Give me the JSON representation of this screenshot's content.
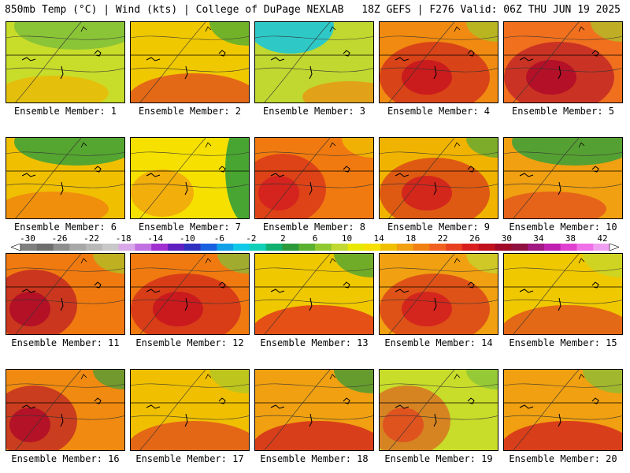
{
  "header": {
    "left_title": "850mb Temp (°C) | Wind (kts) | College of DuPage NEXLAB",
    "right_title": "18Z GEFS | F276 Valid: 06Z THU JUN 19 2025"
  },
  "members": [
    {
      "label": "Ensemble Member: 1",
      "base": "#c8dc2a",
      "hot": "#f0b400",
      "cold": "#7fc03a",
      "pattern": "cool-north"
    },
    {
      "label": "Ensemble Member: 2",
      "base": "#f0c800",
      "hot": "#e04a1e",
      "cold": "#3aa83a",
      "pattern": "warm-south"
    },
    {
      "label": "Ensemble Member: 3",
      "base": "#c0d830",
      "hot": "#f08c10",
      "cold": "#1ec8d8",
      "pattern": "cold-northwest"
    },
    {
      "label": "Ensemble Member: 4",
      "base": "#f08a10",
      "hot": "#c8141e",
      "cold": "#a0c828",
      "pattern": "hot-center"
    },
    {
      "label": "Ensemble Member: 5",
      "base": "#f0701e",
      "hot": "#b00a28",
      "cold": "#a8c828",
      "pattern": "hot-center"
    },
    {
      "label": "Ensemble Member: 6",
      "base": "#f0c000",
      "hot": "#f07a10",
      "cold": "#3aa03a",
      "pattern": "cool-north"
    },
    {
      "label": "Ensemble Member: 7",
      "base": "#f5e000",
      "hot": "#f08c10",
      "cold": "#2a9a3a",
      "pattern": "cool-east"
    },
    {
      "label": "Ensemble Member: 8",
      "base": "#f07a10",
      "hot": "#d21e1e",
      "cold": "#f0c800",
      "pattern": "hot-west"
    },
    {
      "label": "Ensemble Member: 9",
      "base": "#f0b400",
      "hot": "#d21e1e",
      "cold": "#4aa83a",
      "pattern": "hot-center"
    },
    {
      "label": "Ensemble Member: 10",
      "base": "#f0a010",
      "hot": "#e04a1e",
      "cold": "#3aa03a",
      "pattern": "cool-north"
    },
    {
      "label": "Ensemble Member: 11",
      "base": "#f07a10",
      "hot": "#b00a28",
      "cold": "#a8c828",
      "pattern": "hot-west"
    },
    {
      "label": "Ensemble Member: 12",
      "base": "#f07a10",
      "hot": "#c8141e",
      "cold": "#7fc03a",
      "pattern": "hot-center"
    },
    {
      "label": "Ensemble Member: 13",
      "base": "#f0c800",
      "hot": "#e0281e",
      "cold": "#3aa03a",
      "pattern": "warm-south"
    },
    {
      "label": "Ensemble Member: 14",
      "base": "#f0a010",
      "hot": "#d21e1e",
      "cold": "#c0d830",
      "pattern": "hot-center"
    },
    {
      "label": "Ensemble Member: 15",
      "base": "#f0c800",
      "hot": "#e04a1e",
      "cold": "#c0d830",
      "pattern": "warm-south"
    },
    {
      "label": "Ensemble Member: 16",
      "base": "#f08a10",
      "hot": "#b00a28",
      "cold": "#3aa03a",
      "pattern": "hot-west"
    },
    {
      "label": "Ensemble Member: 17",
      "base": "#f0c000",
      "hot": "#e04a1e",
      "cold": "#a8c828",
      "pattern": "warm-south"
    },
    {
      "label": "Ensemble Member: 18",
      "base": "#f0a010",
      "hot": "#d21e1e",
      "cold": "#2a9a3a",
      "pattern": "warm-south"
    },
    {
      "label": "Ensemble Member: 19",
      "base": "#c8dc2a",
      "hot": "#e04a1e",
      "cold": "#7fc03a",
      "pattern": "hot-west"
    },
    {
      "label": "Ensemble Member: 20",
      "base": "#f0a010",
      "hot": "#d21e1e",
      "cold": "#7fc03a",
      "pattern": "warm-south"
    }
  ],
  "colorbar": {
    "labels": [
      "-30",
      "-26",
      "-22",
      "-18",
      "-14",
      "-10",
      "-6",
      "-2",
      "2",
      "6",
      "10",
      "14",
      "18",
      "22",
      "26",
      "30",
      "34",
      "38",
      "42"
    ],
    "colors": [
      "#7f7f7f",
      "#6e6e6e",
      "#8e8e8e",
      "#a8a8a8",
      "#b8b8b8",
      "#c8c8c8",
      "#d8a8e8",
      "#c070e0",
      "#a030d0",
      "#6020c0",
      "#3030c0",
      "#1860e0",
      "#10a0e8",
      "#10c8e8",
      "#10d0b8",
      "#10b070",
      "#2a9a3a",
      "#5ab030",
      "#90c830",
      "#c0d830",
      "#e8e800",
      "#f5e000",
      "#f0c000",
      "#f0a010",
      "#f08010",
      "#f06020",
      "#e8401e",
      "#d81e1e",
      "#c0101e",
      "#a00a28",
      "#901040",
      "#a01880",
      "#c020b0",
      "#e040d0",
      "#f070e8",
      "#f0a0f0"
    ]
  }
}
